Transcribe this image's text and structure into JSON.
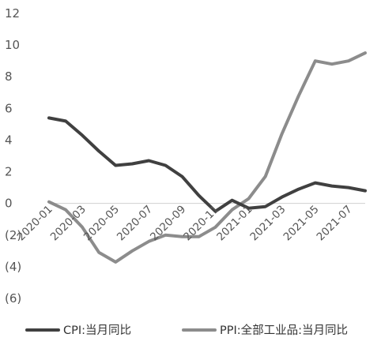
{
  "chart_data": {
    "type": "line",
    "title": "",
    "xlabel": "",
    "ylabel": "",
    "ylim": [
      -6,
      12
    ],
    "y_ticks": [
      12,
      10,
      8,
      6,
      4,
      2,
      0,
      -2,
      -4,
      -6
    ],
    "y_tick_labels": [
      "12",
      "10",
      "8",
      "6",
      "4",
      "2",
      "0",
      "(2)",
      "(4)",
      "(6)"
    ],
    "x": [
      "2020-01",
      "2020-02",
      "2020-03",
      "2020-04",
      "2020-05",
      "2020-06",
      "2020-07",
      "2020-08",
      "2020-09",
      "2020-10",
      "2020-11",
      "2020-12",
      "2021-01",
      "2021-02",
      "2021-03",
      "2021-04",
      "2021-05",
      "2021-06",
      "2021-07",
      "2021-08"
    ],
    "x_tick_labels": [
      "2020-01",
      "2020-03",
      "2020-05",
      "2020-07",
      "2020-09",
      "2020-11",
      "2021-01",
      "2021-03",
      "2021-05",
      "2021-07"
    ],
    "grid": false,
    "legend_position": "bottom",
    "series": [
      {
        "name": "CPI:当月同比",
        "color": "#404040",
        "values": [
          5.4,
          5.2,
          4.3,
          3.3,
          2.4,
          2.5,
          2.7,
          2.4,
          1.7,
          0.5,
          -0.5,
          0.2,
          -0.3,
          -0.2,
          0.4,
          0.9,
          1.3,
          1.1,
          1.0,
          0.8
        ]
      },
      {
        "name": "PPI:全部工业品:当月同比",
        "color": "#8c8c8c",
        "values": [
          0.1,
          -0.4,
          -1.5,
          -3.1,
          -3.7,
          -3.0,
          -2.4,
          -2.0,
          -2.1,
          -2.1,
          -1.5,
          -0.4,
          0.3,
          1.7,
          4.4,
          6.8,
          9.0,
          8.8,
          9.0,
          9.5
        ]
      }
    ]
  }
}
